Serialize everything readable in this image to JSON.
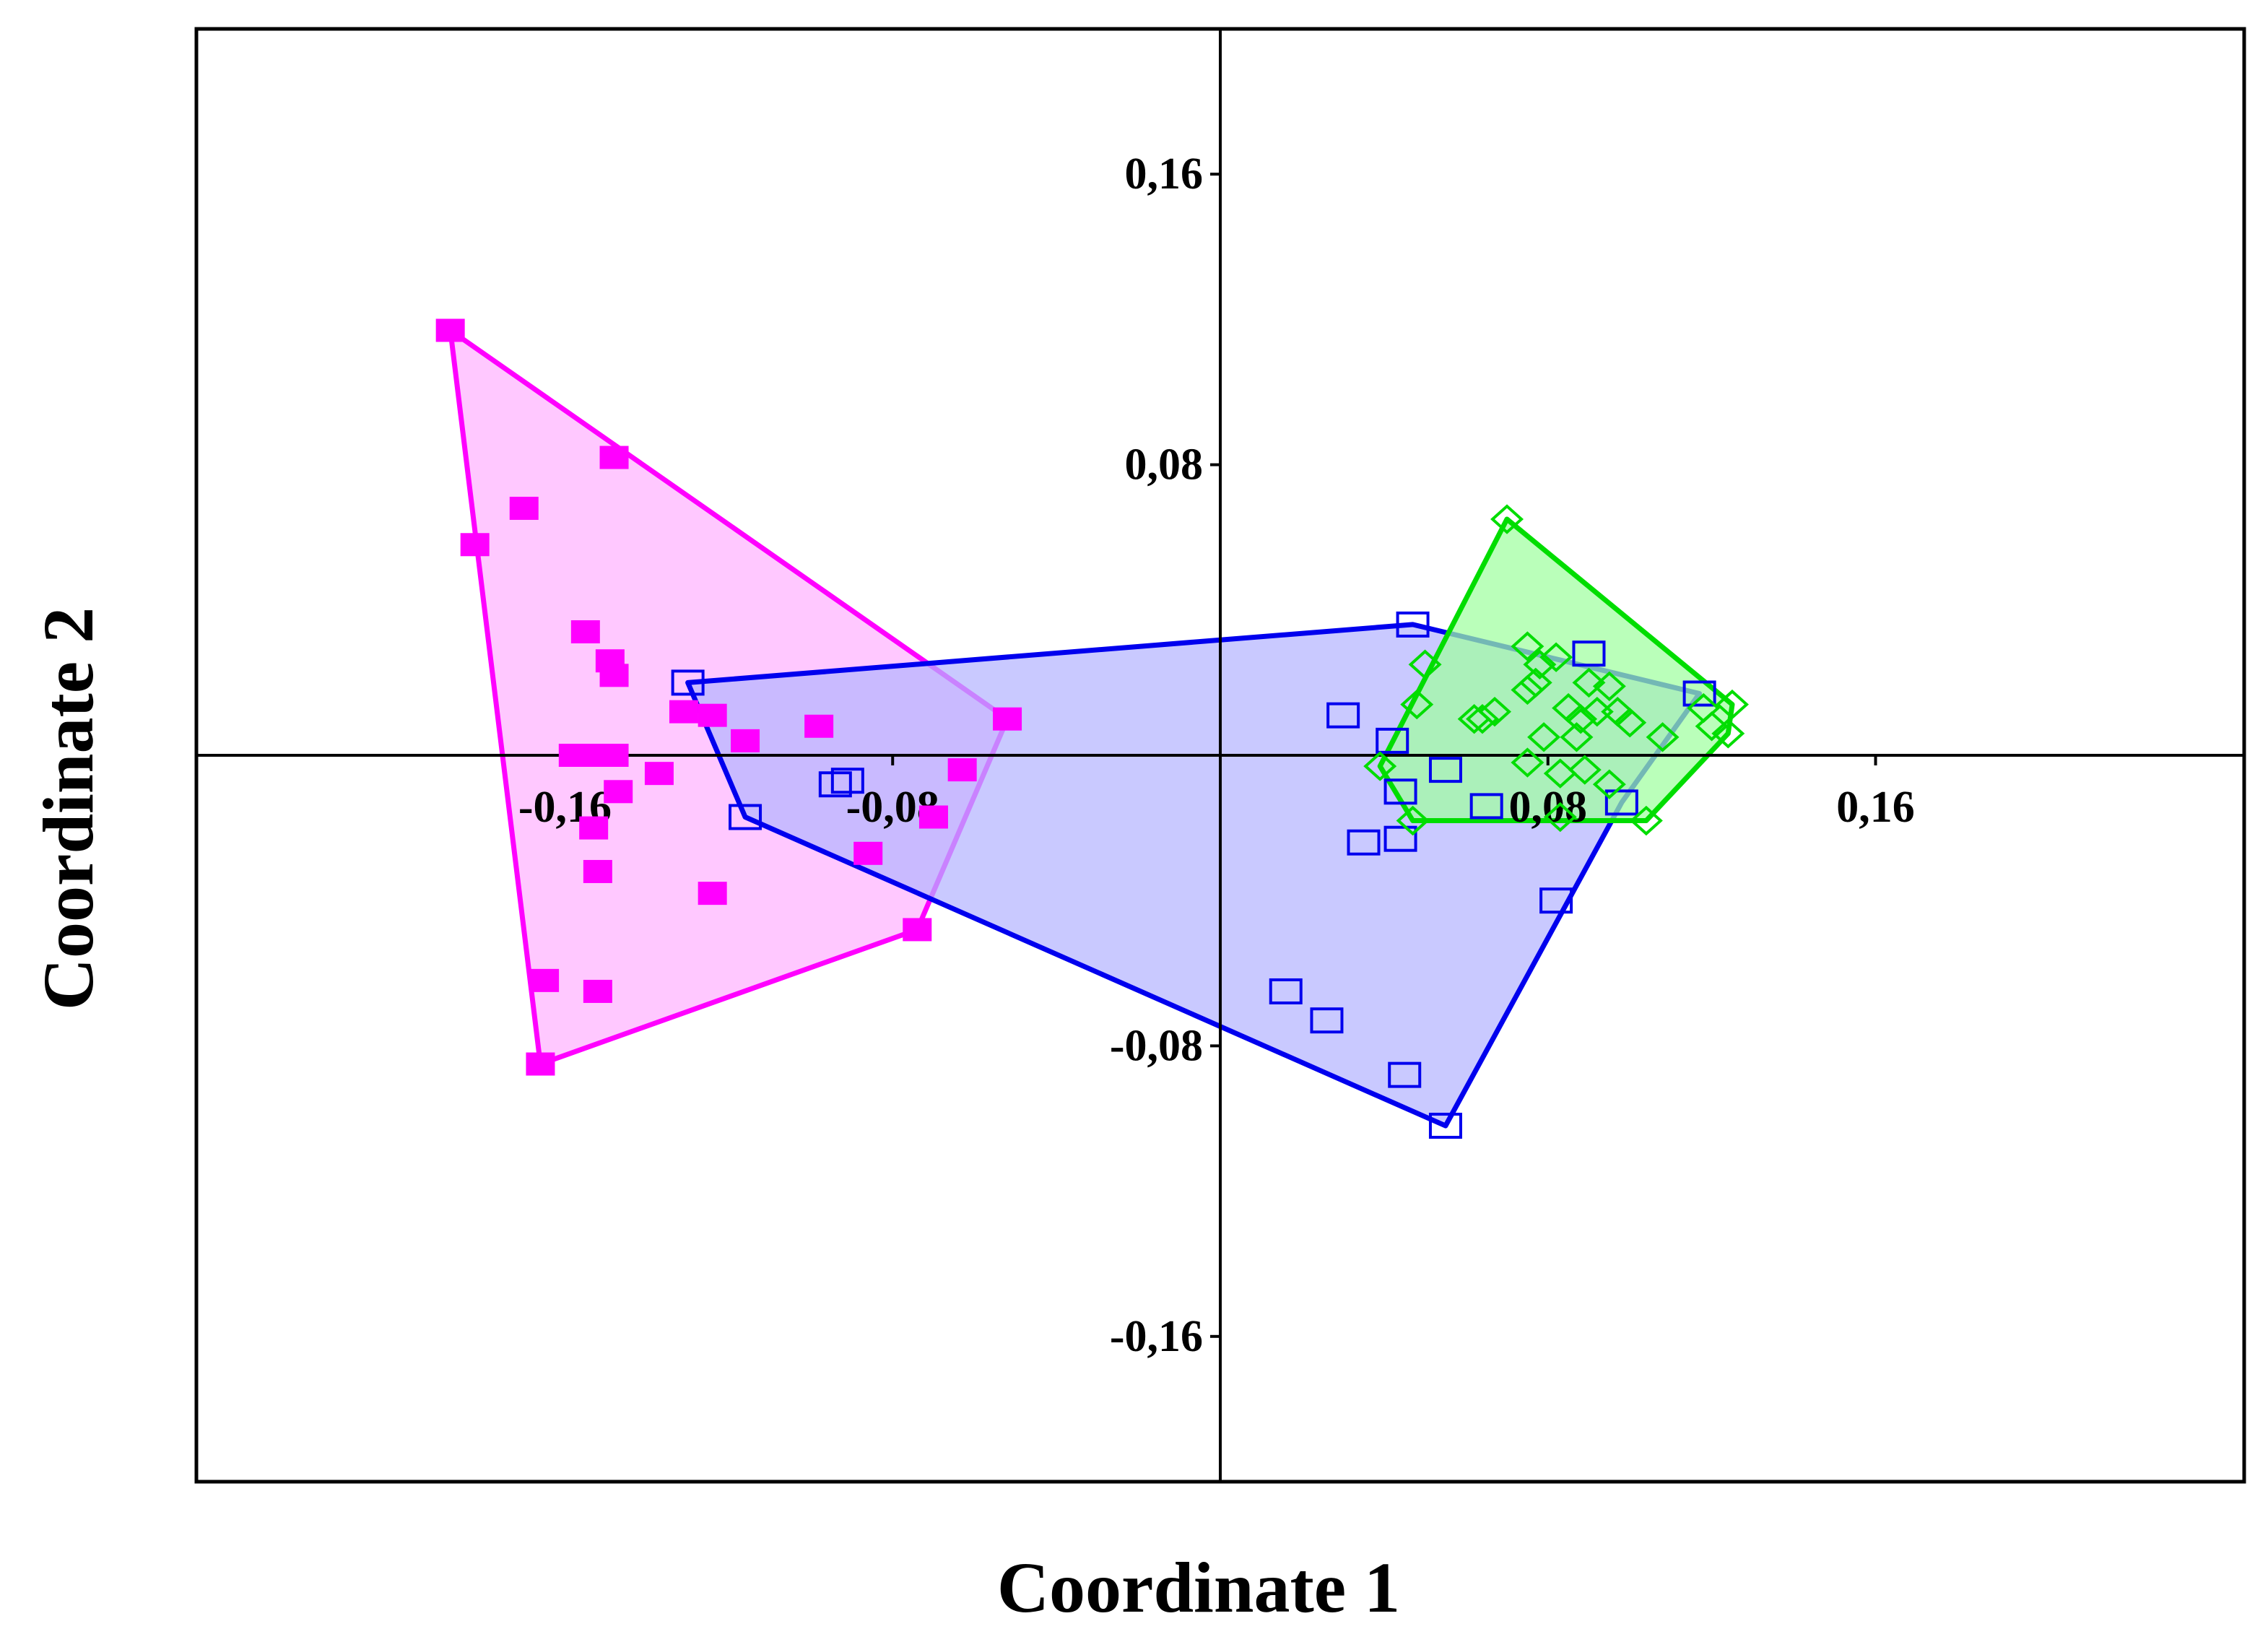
{
  "chart_data": {
    "type": "scatter",
    "title": "",
    "xlabel": "Coordinate 1",
    "ylabel": "Coordinate 2",
    "xlim": [
      -0.25,
      0.25
    ],
    "ylim": [
      -0.2,
      0.2
    ],
    "x_ticks": [
      {
        "value": -0.16,
        "label": "-0,16"
      },
      {
        "value": -0.08,
        "label": "-0,08"
      },
      {
        "value": 0.08,
        "label": "0,08"
      },
      {
        "value": 0.16,
        "label": "0,16"
      }
    ],
    "y_ticks": [
      {
        "value": 0.16,
        "label": "0,16"
      },
      {
        "value": 0.08,
        "label": "0,08"
      },
      {
        "value": -0.08,
        "label": "-0,08"
      },
      {
        "value": -0.16,
        "label": "-0,16"
      }
    ],
    "grid": false,
    "legend": "none",
    "series": [
      {
        "color": "#ff00ff",
        "fill": "#ffb3ff",
        "marker": "filled-square",
        "points": [
          [
            -0.188,
            0.117
          ],
          [
            -0.182,
            0.058
          ],
          [
            -0.17,
            0.068
          ],
          [
            -0.148,
            0.082
          ],
          [
            -0.155,
            0.034
          ],
          [
            -0.149,
            0.026
          ],
          [
            -0.148,
            0.022
          ],
          [
            -0.131,
            0.012
          ],
          [
            -0.124,
            0.011
          ],
          [
            -0.116,
            0.004
          ],
          [
            -0.098,
            0.008
          ],
          [
            -0.158,
            0.0
          ],
          [
            -0.152,
            0.0
          ],
          [
            -0.148,
            0.0
          ],
          [
            -0.147,
            -0.01
          ],
          [
            -0.137,
            -0.005
          ],
          [
            -0.153,
            -0.02
          ],
          [
            -0.152,
            -0.032
          ],
          [
            -0.124,
            -0.038
          ],
          [
            -0.086,
            -0.027
          ],
          [
            -0.07,
            -0.017
          ],
          [
            -0.063,
            -0.004
          ],
          [
            -0.052,
            0.01
          ],
          [
            -0.074,
            -0.048
          ],
          [
            -0.165,
            -0.062
          ],
          [
            -0.152,
            -0.065
          ],
          [
            -0.166,
            -0.085
          ]
        ],
        "hull": [
          [
            -0.188,
            0.117
          ],
          [
            -0.052,
            0.01
          ],
          [
            -0.074,
            -0.048
          ],
          [
            -0.166,
            -0.085
          ]
        ]
      },
      {
        "color": "#0000ee",
        "fill": "#b4b4ff",
        "marker": "open-square",
        "points": [
          [
            -0.13,
            0.02
          ],
          [
            -0.116,
            -0.017
          ],
          [
            -0.094,
            -0.008
          ],
          [
            -0.091,
            -0.007
          ],
          [
            0.047,
            0.036
          ],
          [
            0.03,
            0.011
          ],
          [
            0.042,
            0.004
          ],
          [
            0.044,
            -0.01
          ],
          [
            0.055,
            -0.004
          ],
          [
            0.065,
            -0.014
          ],
          [
            0.035,
            -0.024
          ],
          [
            0.044,
            -0.023
          ],
          [
            0.09,
            0.028
          ],
          [
            0.098,
            -0.013
          ],
          [
            0.117,
            0.017
          ],
          [
            0.082,
            -0.04
          ],
          [
            0.016,
            -0.065
          ],
          [
            0.026,
            -0.073
          ],
          [
            0.045,
            -0.088
          ],
          [
            0.055,
            -0.102
          ]
        ],
        "hull": [
          [
            -0.13,
            0.02
          ],
          [
            0.047,
            0.036
          ],
          [
            0.117,
            0.017
          ],
          [
            0.098,
            -0.013
          ],
          [
            0.055,
            -0.102
          ],
          [
            -0.116,
            -0.017
          ]
        ]
      },
      {
        "color": "#00dd00",
        "fill": "#a0ffa0",
        "marker": "open-diamond",
        "points": [
          [
            0.07,
            0.065
          ],
          [
            0.05,
            0.025
          ],
          [
            0.048,
            0.014
          ],
          [
            0.039,
            -0.003
          ],
          [
            0.047,
            -0.018
          ],
          [
            0.064,
            0.01
          ],
          [
            0.067,
            0.012
          ],
          [
            0.062,
            0.01
          ],
          [
            0.075,
            0.03
          ],
          [
            0.078,
            0.025
          ],
          [
            0.082,
            0.027
          ],
          [
            0.075,
            0.018
          ],
          [
            0.077,
            0.02
          ],
          [
            0.085,
            0.013
          ],
          [
            0.09,
            0.02
          ],
          [
            0.095,
            0.019
          ],
          [
            0.092,
            0.012
          ],
          [
            0.097,
            0.012
          ],
          [
            0.088,
            0.01
          ],
          [
            0.1,
            0.009
          ],
          [
            0.108,
            0.005
          ],
          [
            0.087,
            0.005
          ],
          [
            0.075,
            -0.002
          ],
          [
            0.079,
            0.005
          ],
          [
            0.083,
            -0.005
          ],
          [
            0.089,
            -0.004
          ],
          [
            0.095,
            -0.008
          ],
          [
            0.083,
            -0.017
          ],
          [
            0.104,
            -0.018
          ],
          [
            0.118,
            0.013
          ],
          [
            0.125,
            0.014
          ],
          [
            0.124,
            0.006
          ],
          [
            0.12,
            0.008
          ]
        ],
        "hull": [
          [
            0.07,
            0.065
          ],
          [
            0.125,
            0.014
          ],
          [
            0.124,
            0.006
          ],
          [
            0.104,
            -0.018
          ],
          [
            0.047,
            -0.018
          ],
          [
            0.039,
            -0.003
          ]
        ]
      }
    ]
  }
}
